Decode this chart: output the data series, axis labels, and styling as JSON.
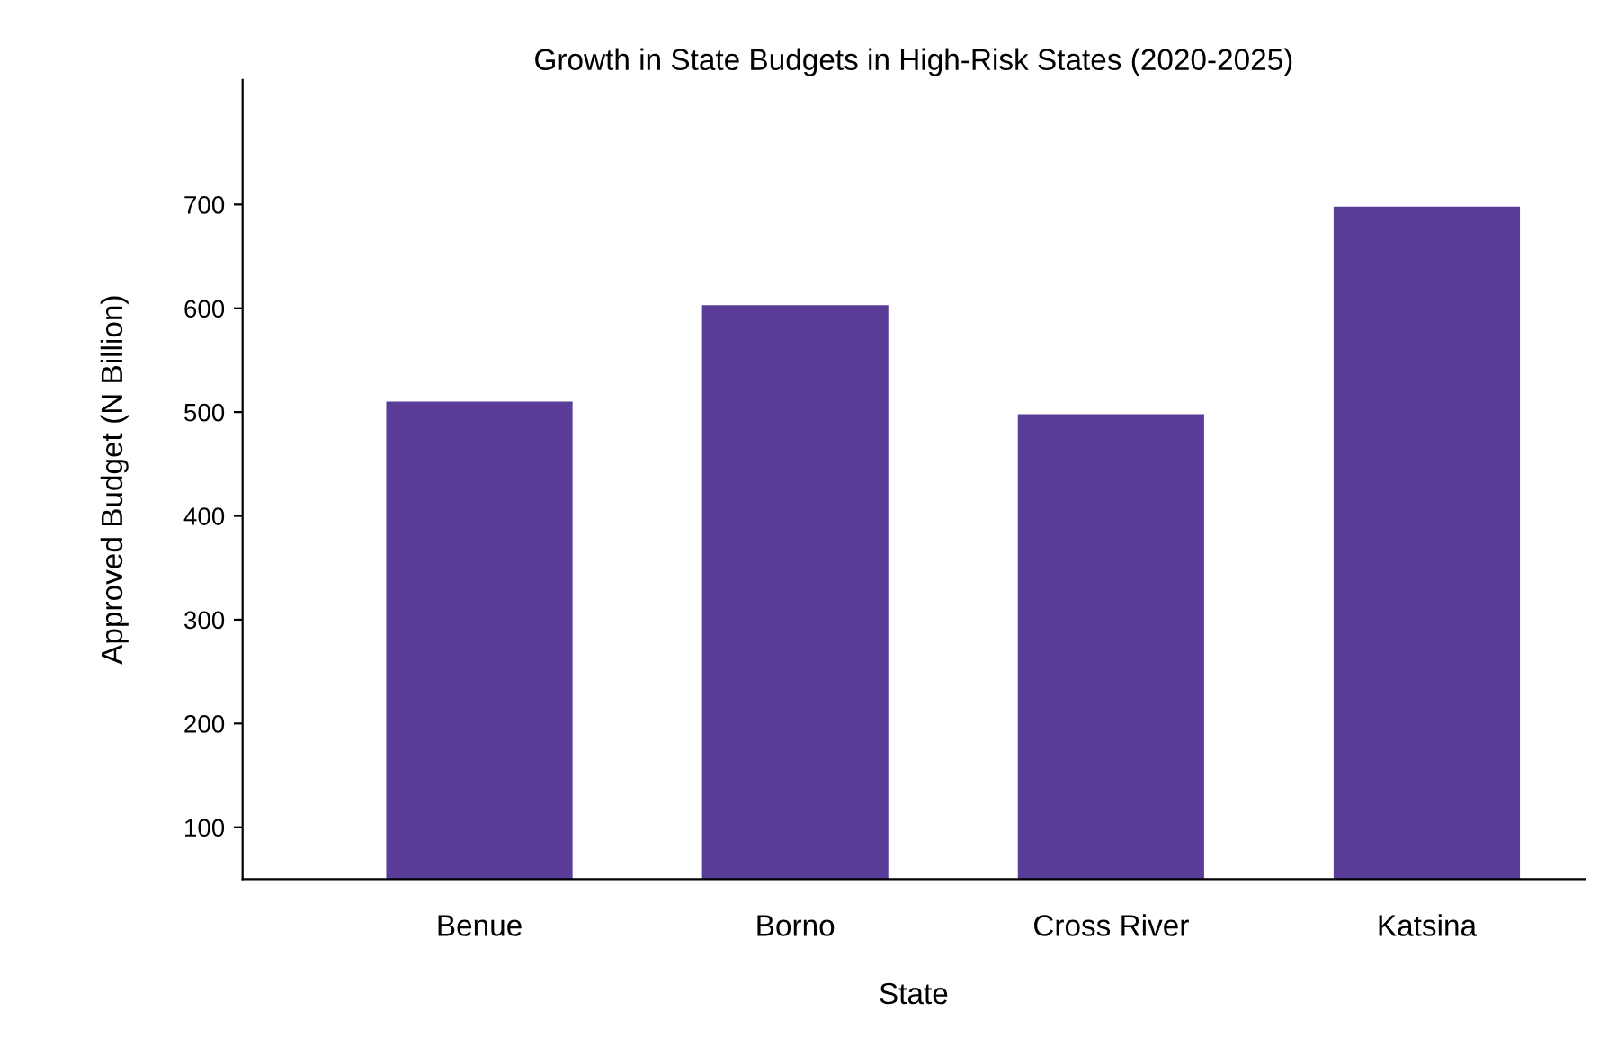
{
  "chart_data": {
    "type": "bar",
    "title": "Growth in State Budgets in High-Risk States (2020-2025)",
    "xlabel": "State",
    "ylabel": "Approved Budget (N Billion)",
    "categories": [
      "Benue",
      "Borno",
      "Cross River",
      "Katsina"
    ],
    "values": [
      510,
      603,
      498,
      698
    ],
    "color": "#5a3d99",
    "ylim": [
      50,
      820
    ],
    "yticks": [
      100,
      200,
      300,
      400,
      500,
      600,
      700
    ],
    "grid": false,
    "legend": false
  }
}
